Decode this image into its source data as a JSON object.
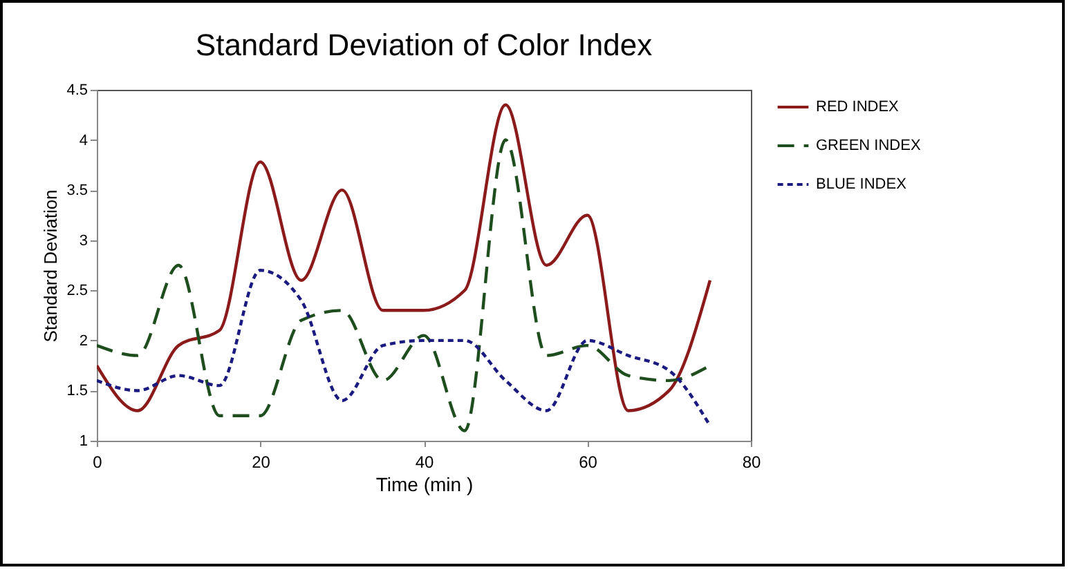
{
  "chart_data": {
    "type": "line",
    "title": "Standard Deviation of Color Index",
    "xlabel": "Time (min )",
    "ylabel": "Standard Deviation",
    "x": [
      0,
      5,
      10,
      15,
      20,
      25,
      30,
      35,
      40,
      45,
      50,
      55,
      60,
      65,
      70,
      75
    ],
    "series": [
      {
        "name": "RED INDEX",
        "color": "#8b1a1a",
        "line_style": "solid",
        "values": [
          1.75,
          1.3,
          1.95,
          2.1,
          3.78,
          2.6,
          3.5,
          2.3,
          2.3,
          2.5,
          4.35,
          2.75,
          3.25,
          1.3,
          1.5,
          2.6
        ]
      },
      {
        "name": "GREEN INDEX",
        "color": "#1e4d1e",
        "line_style": "dashed",
        "values": [
          1.95,
          1.85,
          2.75,
          1.25,
          1.25,
          2.2,
          2.3,
          1.6,
          2.05,
          1.1,
          4.0,
          1.85,
          1.95,
          1.65,
          1.6,
          1.75
        ]
      },
      {
        "name": "BLUE INDEX",
        "color": "#1a1a80",
        "line_style": "dotted",
        "values": [
          1.6,
          1.5,
          1.65,
          1.55,
          2.7,
          2.4,
          1.4,
          1.95,
          2.0,
          2.0,
          1.6,
          1.3,
          2.0,
          1.85,
          1.7,
          1.15
        ]
      }
    ],
    "xlim": [
      0,
      80
    ],
    "xticks": [
      0,
      20,
      40,
      60,
      80
    ],
    "ylim": [
      1,
      4.5
    ],
    "yticks": [
      1,
      1.5,
      2,
      2.5,
      3,
      3.5,
      4,
      4.5
    ],
    "grid": false,
    "legend": "top right"
  }
}
